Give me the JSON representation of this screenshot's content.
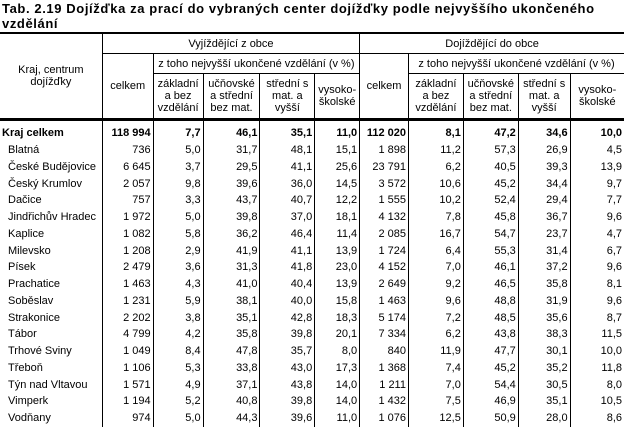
{
  "title": "Tab. 2.19 Dojížďka za prací do vybraných center dojížďky podle nejvyššího ukončeného vzdělání",
  "header": {
    "region_col": "Kraj, centrum dojížďky",
    "outgoing": "Vyjíždějící z obce",
    "incoming": "Dojíždějící do obce",
    "total": "celkem",
    "subgroup": "z toho nejvyšší ukončené vzdělání (v %)",
    "edu": [
      "základní a bez vzdělání",
      "učňovské a střední bez mat.",
      "střední s mat. a vyšší",
      "vysoko-školské"
    ]
  },
  "rows": [
    {
      "name": "Kraj celkem",
      "total": true,
      "out": [
        "118 994",
        "7,7",
        "46,1",
        "35,1",
        "11,0"
      ],
      "in": [
        "112 020",
        "8,1",
        "47,2",
        "34,6",
        "10,0"
      ]
    },
    {
      "name": "Blatná",
      "out": [
        "736",
        "5,0",
        "31,7",
        "48,1",
        "15,1"
      ],
      "in": [
        "1 898",
        "11,2",
        "57,3",
        "26,9",
        "4,5"
      ]
    },
    {
      "name": "České Budějovice",
      "out": [
        "6 645",
        "3,7",
        "29,5",
        "41,1",
        "25,6"
      ],
      "in": [
        "23 791",
        "6,2",
        "40,5",
        "39,3",
        "13,9"
      ]
    },
    {
      "name": "Český Krumlov",
      "out": [
        "2 057",
        "9,8",
        "39,6",
        "36,0",
        "14,5"
      ],
      "in": [
        "3 572",
        "10,6",
        "45,2",
        "34,4",
        "9,7"
      ]
    },
    {
      "name": "Dačice",
      "out": [
        "757",
        "3,3",
        "43,7",
        "40,7",
        "12,2"
      ],
      "in": [
        "1 555",
        "10,2",
        "52,4",
        "29,4",
        "7,7"
      ]
    },
    {
      "name": "Jindřichův Hradec",
      "out": [
        "1 972",
        "5,0",
        "39,8",
        "37,0",
        "18,1"
      ],
      "in": [
        "4 132",
        "7,8",
        "45,8",
        "36,7",
        "9,6"
      ]
    },
    {
      "name": "Kaplice",
      "out": [
        "1 082",
        "5,8",
        "36,2",
        "46,4",
        "11,4"
      ],
      "in": [
        "2 085",
        "16,7",
        "54,7",
        "23,7",
        "4,7"
      ]
    },
    {
      "name": "Milevsko",
      "out": [
        "1 208",
        "2,9",
        "41,9",
        "41,1",
        "13,9"
      ],
      "in": [
        "1 724",
        "6,4",
        "55,3",
        "31,4",
        "6,7"
      ]
    },
    {
      "name": "Písek",
      "out": [
        "2 479",
        "3,6",
        "31,3",
        "41,8",
        "23,0"
      ],
      "in": [
        "4 152",
        "7,0",
        "46,1",
        "37,2",
        "9,6"
      ]
    },
    {
      "name": "Prachatice",
      "out": [
        "1 463",
        "4,3",
        "41,0",
        "40,4",
        "13,9"
      ],
      "in": [
        "2 649",
        "9,2",
        "46,5",
        "35,8",
        "8,1"
      ]
    },
    {
      "name": "Soběslav",
      "out": [
        "1 231",
        "5,9",
        "38,1",
        "40,0",
        "15,8"
      ],
      "in": [
        "1 463",
        "9,6",
        "48,8",
        "31,9",
        "9,6"
      ]
    },
    {
      "name": "Strakonice",
      "out": [
        "2 202",
        "3,8",
        "35,1",
        "42,8",
        "18,3"
      ],
      "in": [
        "5 174",
        "7,2",
        "48,5",
        "35,6",
        "8,7"
      ]
    },
    {
      "name": "Tábor",
      "out": [
        "4 799",
        "4,2",
        "35,8",
        "39,8",
        "20,1"
      ],
      "in": [
        "7 334",
        "6,2",
        "43,8",
        "38,3",
        "11,5"
      ]
    },
    {
      "name": "Trhové Sviny",
      "out": [
        "1 049",
        "8,4",
        "47,8",
        "35,7",
        "8,0"
      ],
      "in": [
        "840",
        "11,9",
        "47,7",
        "30,1",
        "10,0"
      ]
    },
    {
      "name": "Třeboň",
      "out": [
        "1 106",
        "5,3",
        "33,8",
        "43,0",
        "17,3"
      ],
      "in": [
        "1 368",
        "7,4",
        "45,2",
        "35,2",
        "11,8"
      ]
    },
    {
      "name": "Týn nad Vltavou",
      "out": [
        "1 571",
        "4,9",
        "37,1",
        "43,8",
        "14,0"
      ],
      "in": [
        "1 211",
        "7,0",
        "54,4",
        "30,5",
        "8,0"
      ]
    },
    {
      "name": "Vimperk",
      "out": [
        "1 194",
        "5,2",
        "40,8",
        "39,8",
        "14,0"
      ],
      "in": [
        "1 432",
        "7,5",
        "46,9",
        "35,1",
        "10,5"
      ]
    },
    {
      "name": "Vodňany",
      "out": [
        "974",
        "5,0",
        "44,3",
        "39,6",
        "11,0"
      ],
      "in": [
        "1 076",
        "12,5",
        "50,9",
        "28,0",
        "8,6"
      ]
    }
  ]
}
